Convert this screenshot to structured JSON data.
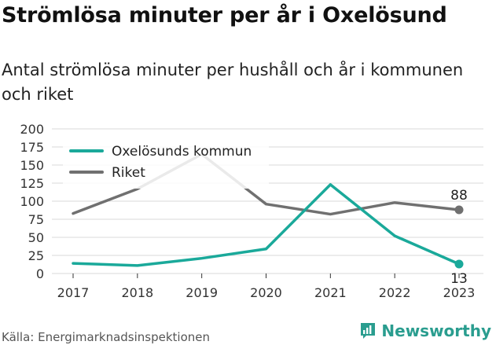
{
  "header": {
    "title": "Strömlösa minuter per år i Oxelösund",
    "subtitle": "Antal strömlösa minuter per hushåll och år i kommunen och riket"
  },
  "footer": {
    "source": "Källa: Energimarknadsinspektionen",
    "brand": "Newsworthy"
  },
  "colors": {
    "kommun": "#1aa99a",
    "riket": "#707070",
    "grid": "#d9d9d9",
    "brand": "#2a9d8f"
  },
  "chart_data": {
    "type": "line",
    "x": [
      "2017",
      "2018",
      "2019",
      "2020",
      "2021",
      "2022",
      "2023"
    ],
    "ylim": [
      0,
      200
    ],
    "yticks": [
      "0",
      "25",
      "50",
      "75",
      "100",
      "125",
      "150",
      "175",
      "200"
    ],
    "grid": true,
    "legend_position": "top-left",
    "series": [
      {
        "name": "Oxelösunds kommun",
        "values": [
          14,
          11,
          21,
          34,
          123,
          52,
          13
        ],
        "end_label": "13"
      },
      {
        "name": "Riket",
        "values": [
          83,
          117,
          165,
          96,
          82,
          98,
          88
        ],
        "end_label": "88"
      }
    ]
  }
}
